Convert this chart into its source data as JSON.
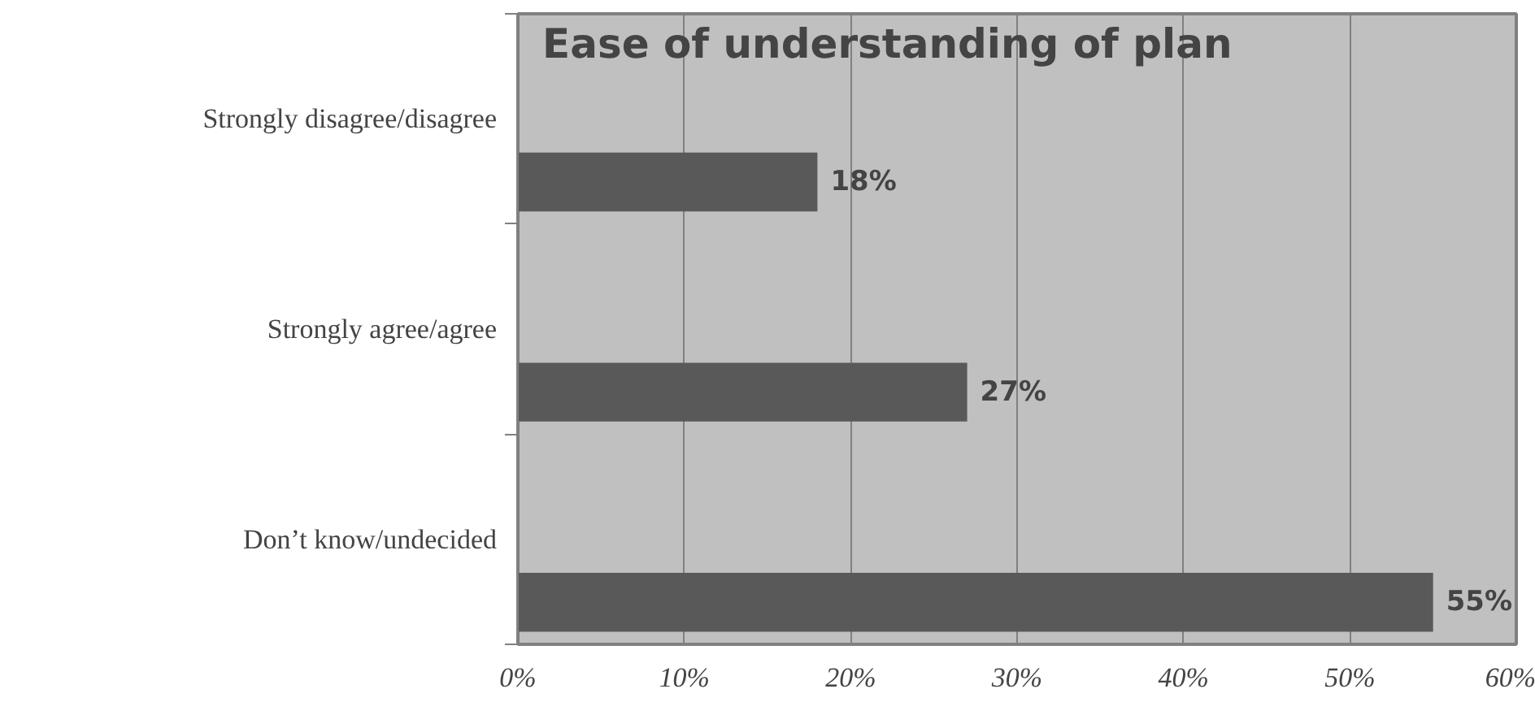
{
  "chart_data": {
    "type": "bar",
    "orientation": "horizontal",
    "title": "Ease of understanding of plan",
    "categories": [
      "Strongly disagree/disagree",
      "Strongly agree/agree",
      "Don’t know/undecided"
    ],
    "values": [
      18,
      27,
      55
    ],
    "color": "#595959",
    "value_labels": [
      "18%",
      "27%",
      "55%"
    ],
    "xlim": [
      0,
      60
    ],
    "xticks": [
      {
        "value": 0,
        "label": "0%"
      },
      {
        "value": 10,
        "label": "10%"
      },
      {
        "value": 20,
        "label": "20%"
      },
      {
        "value": 30,
        "label": "30%"
      },
      {
        "value": 40,
        "label": "40%"
      },
      {
        "value": 50,
        "label": "50%"
      },
      {
        "value": 60,
        "label": "60%"
      }
    ],
    "grid": "x"
  }
}
